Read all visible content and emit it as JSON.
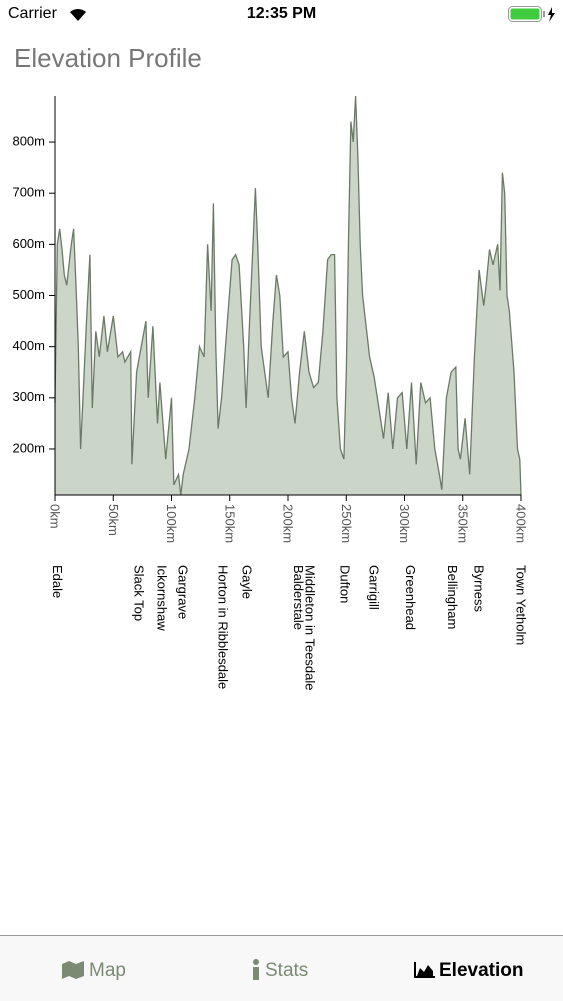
{
  "status_bar": {
    "carrier": "Carrier",
    "time": "12:35 PM"
  },
  "header": {
    "title": "Elevation Profile"
  },
  "chart_data": {
    "type": "area",
    "color": "#cbd5c8",
    "line_color": "#6b7a66",
    "x": [
      0,
      2,
      4,
      6,
      8,
      10,
      14,
      16,
      18,
      20,
      22,
      24,
      27,
      30,
      32,
      35,
      38,
      42,
      45,
      50,
      54,
      58,
      60,
      65,
      66,
      70,
      74,
      78,
      80,
      84,
      88,
      90,
      95,
      100,
      102,
      106,
      108,
      110,
      115,
      120,
      124,
      128,
      131,
      134,
      136,
      138,
      140,
      143,
      148,
      152,
      155,
      158,
      162,
      164,
      167,
      170,
      172,
      174,
      177,
      180,
      183,
      187,
      190,
      193,
      196,
      200,
      203,
      206,
      210,
      214,
      218,
      222,
      226,
      230,
      234,
      237,
      240,
      242,
      245,
      248,
      250,
      252,
      254,
      256,
      258,
      260,
      262,
      264,
      267,
      270,
      274,
      278,
      282,
      286,
      290,
      294,
      298,
      302,
      306,
      310,
      314,
      318,
      322,
      326,
      330,
      332,
      336,
      340,
      344,
      346,
      348,
      352,
      356,
      360,
      364,
      368,
      370,
      373,
      376,
      380,
      382,
      384,
      386,
      388,
      390,
      394,
      397,
      399,
      400
    ],
    "y": [
      290,
      600,
      630,
      590,
      540,
      520,
      600,
      630,
      520,
      400,
      200,
      300,
      450,
      580,
      280,
      430,
      380,
      460,
      390,
      460,
      380,
      390,
      370,
      390,
      170,
      350,
      400,
      450,
      300,
      440,
      250,
      330,
      180,
      300,
      130,
      150,
      110,
      150,
      200,
      300,
      400,
      380,
      600,
      470,
      680,
      400,
      240,
      300,
      450,
      570,
      580,
      560,
      400,
      280,
      450,
      600,
      710,
      600,
      400,
      350,
      300,
      450,
      540,
      500,
      380,
      390,
      300,
      250,
      350,
      430,
      350,
      320,
      330,
      430,
      570,
      580,
      580,
      300,
      200,
      180,
      350,
      620,
      840,
      800,
      890,
      770,
      600,
      500,
      440,
      380,
      340,
      280,
      220,
      310,
      200,
      300,
      310,
      200,
      330,
      170,
      330,
      290,
      300,
      200,
      150,
      120,
      300,
      350,
      360,
      200,
      180,
      260,
      150,
      380,
      550,
      480,
      520,
      590,
      560,
      600,
      510,
      740,
      700,
      500,
      470,
      350,
      200,
      180,
      110
    ],
    "xlim": [
      0,
      400
    ],
    "ylim": [
      110,
      890
    ],
    "xticks": [
      {
        "value": 0,
        "label": "0km"
      },
      {
        "value": 50,
        "label": "50km"
      },
      {
        "value": 100,
        "label": "100km"
      },
      {
        "value": 150,
        "label": "150km"
      },
      {
        "value": 200,
        "label": "200km"
      },
      {
        "value": 250,
        "label": "250km"
      },
      {
        "value": 300,
        "label": "300km"
      },
      {
        "value": 350,
        "label": "350km"
      },
      {
        "value": 400,
        "label": "400km"
      }
    ],
    "yticks": [
      {
        "value": 200,
        "label": "200m"
      },
      {
        "value": 300,
        "label": "300m"
      },
      {
        "value": 400,
        "label": "400m"
      },
      {
        "value": 500,
        "label": "500m"
      },
      {
        "value": 600,
        "label": "600m"
      },
      {
        "value": 700,
        "label": "700m"
      },
      {
        "value": 800,
        "label": "800m"
      }
    ],
    "waypoints": [
      {
        "name": "Edale",
        "km": 2
      },
      {
        "name": "Slack Top",
        "km": 72
      },
      {
        "name": "Ickornshaw",
        "km": 92
      },
      {
        "name": "Gargrave",
        "km": 110
      },
      {
        "name": "Horton in Ribblesdale",
        "km": 144
      },
      {
        "name": "Gayle",
        "km": 165
      },
      {
        "name": "Balderstale",
        "km": 209
      },
      {
        "name": "Middleton in Teesdale",
        "km": 219
      },
      {
        "name": "Dufton",
        "km": 249
      },
      {
        "name": "Garrigill",
        "km": 274
      },
      {
        "name": "Greenhead",
        "km": 305
      },
      {
        "name": "Bellingham",
        "km": 341
      },
      {
        "name": "Byrness",
        "km": 364
      },
      {
        "name": "Town Yetholm",
        "km": 400
      }
    ]
  },
  "tab_bar": {
    "tabs": [
      {
        "label": "Map"
      },
      {
        "label": "Stats"
      },
      {
        "label": "Elevation"
      }
    ]
  }
}
